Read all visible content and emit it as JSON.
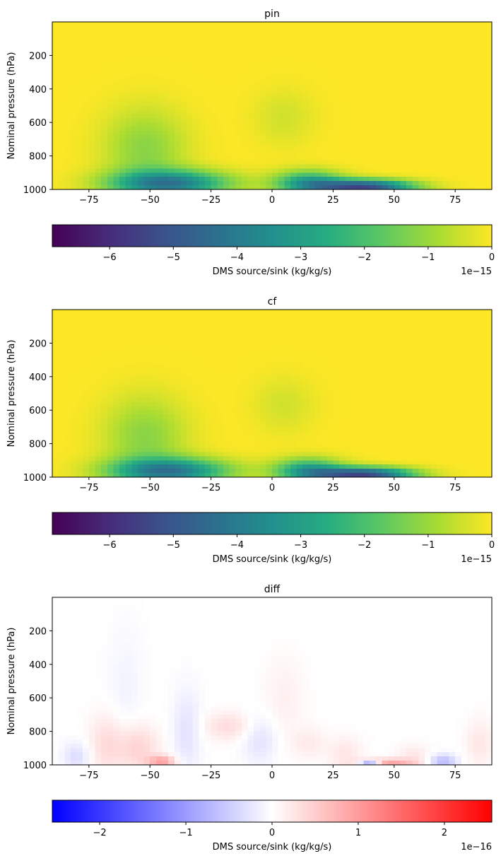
{
  "chart_data": [
    {
      "type": "heatmap",
      "title": "pin",
      "xlabel": "",
      "ylabel": "Nominal pressure (hPa)",
      "xlim": [
        -90,
        90
      ],
      "ylim": [
        1000,
        0
      ],
      "xticks": [
        -75,
        -50,
        -25,
        0,
        25,
        50,
        75
      ],
      "xtick_labels": [
        "−75",
        "−50",
        "−25",
        "0",
        "25",
        "50",
        "75"
      ],
      "yticks": [
        200,
        400,
        600,
        800,
        1000
      ],
      "ytick_labels": [
        "200",
        "400",
        "600",
        "800",
        "1000"
      ],
      "colormap": "viridis",
      "colorbar": {
        "label": "DMS source/sink (kg/kg/s)",
        "range": [
          -6.9,
          0
        ],
        "ticks": [
          -6,
          -5,
          -4,
          -3,
          -2,
          -1,
          0
        ],
        "tick_labels": [
          "−6",
          "−5",
          "−4",
          "−3",
          "−2",
          "−1",
          "0"
        ],
        "offset_text": "1e−15"
      },
      "features": [
        {
          "lat": -52,
          "p": 760,
          "lat_sd": 12,
          "p_sd": 170,
          "value": -1.2
        },
        {
          "lat": -42,
          "p": 965,
          "lat_sd": 17,
          "p_sd": 55,
          "value": -4.0
        },
        {
          "lat": 38,
          "p": 985,
          "lat_sd": 14,
          "p_sd": 30,
          "value": -5.3
        },
        {
          "lat": 15,
          "p": 960,
          "lat_sd": 10,
          "p_sd": 50,
          "value": -3.0
        },
        {
          "lat": 5,
          "p": 570,
          "lat_sd": 9,
          "p_sd": 120,
          "value": -0.45
        }
      ]
    },
    {
      "type": "heatmap",
      "title": "cf",
      "xlabel": "",
      "ylabel": "Nominal pressure (hPa)",
      "xlim": [
        -90,
        90
      ],
      "ylim": [
        1000,
        0
      ],
      "xticks": [
        -75,
        -50,
        -25,
        0,
        25,
        50,
        75
      ],
      "xtick_labels": [
        "−75",
        "−50",
        "−25",
        "0",
        "25",
        "50",
        "75"
      ],
      "yticks": [
        200,
        400,
        600,
        800,
        1000
      ],
      "ytick_labels": [
        "200",
        "400",
        "600",
        "800",
        "1000"
      ],
      "colormap": "viridis",
      "colorbar": {
        "label": "DMS source/sink (kg/kg/s)",
        "range": [
          -6.9,
          0
        ],
        "ticks": [
          -6,
          -5,
          -4,
          -3,
          -2,
          -1,
          0
        ],
        "tick_labels": [
          "−6",
          "−5",
          "−4",
          "−3",
          "−2",
          "−1",
          "0"
        ],
        "offset_text": "1e−15"
      },
      "features": [
        {
          "lat": -52,
          "p": 760,
          "lat_sd": 12,
          "p_sd": 170,
          "value": -1.2
        },
        {
          "lat": -42,
          "p": 965,
          "lat_sd": 17,
          "p_sd": 55,
          "value": -4.0
        },
        {
          "lat": 38,
          "p": 985,
          "lat_sd": 14,
          "p_sd": 30,
          "value": -5.3
        },
        {
          "lat": 15,
          "p": 960,
          "lat_sd": 10,
          "p_sd": 50,
          "value": -3.0
        },
        {
          "lat": 5,
          "p": 570,
          "lat_sd": 9,
          "p_sd": 120,
          "value": -0.45
        }
      ]
    },
    {
      "type": "heatmap",
      "title": "diff",
      "xlabel": "",
      "ylabel": "Nominal pressure (hPa)",
      "xlim": [
        -90,
        90
      ],
      "ylim": [
        1000,
        0
      ],
      "xticks": [
        -75,
        -50,
        -25,
        0,
        25,
        50,
        75
      ],
      "xtick_labels": [
        "−75",
        "−50",
        "−25",
        "0",
        "25",
        "50",
        "75"
      ],
      "yticks": [
        200,
        400,
        600,
        800,
        1000
      ],
      "ytick_labels": [
        "200",
        "400",
        "600",
        "800",
        "1000"
      ],
      "colormap": "bwr",
      "colorbar": {
        "label": "DMS source/sink (kg/kg/s)",
        "range": [
          -2.55,
          2.55
        ],
        "ticks": [
          -2,
          -1,
          0,
          1,
          2
        ],
        "tick_labels": [
          "−2",
          "−1",
          "0",
          "1",
          "2"
        ],
        "offset_text": "1e−16"
      },
      "features": [
        {
          "lat": -80,
          "p": 950,
          "lat_sd": 4,
          "p_sd": 60,
          "value": -0.35
        },
        {
          "lat": -68,
          "p": 880,
          "lat_sd": 5,
          "p_sd": 130,
          "value": 0.35
        },
        {
          "lat": -55,
          "p": 900,
          "lat_sd": 6,
          "p_sd": 100,
          "value": 0.45
        },
        {
          "lat": -45,
          "p": 980,
          "lat_sd": 4,
          "p_sd": 25,
          "value": 0.9
        },
        {
          "lat": -60,
          "p": 550,
          "lat_sd": 5,
          "p_sd": 250,
          "value": -0.12
        },
        {
          "lat": -35,
          "p": 800,
          "lat_sd": 4,
          "p_sd": 170,
          "value": -0.3
        },
        {
          "lat": -18,
          "p": 770,
          "lat_sd": 7,
          "p_sd": 60,
          "value": 0.35
        },
        {
          "lat": -5,
          "p": 850,
          "lat_sd": 5,
          "p_sd": 100,
          "value": -0.3
        },
        {
          "lat": 5,
          "p": 600,
          "lat_sd": 6,
          "p_sd": 180,
          "value": 0.15
        },
        {
          "lat": 15,
          "p": 870,
          "lat_sd": 5,
          "p_sd": 70,
          "value": 0.2
        },
        {
          "lat": 30,
          "p": 930,
          "lat_sd": 5,
          "p_sd": 70,
          "value": 0.25
        },
        {
          "lat": 40,
          "p": 995,
          "lat_sd": 3,
          "p_sd": 12,
          "value": -1.6
        },
        {
          "lat": 47,
          "p": 985,
          "lat_sd": 8,
          "p_sd": 15,
          "value": 0.9
        },
        {
          "lat": 58,
          "p": 950,
          "lat_sd": 5,
          "p_sd": 50,
          "value": 0.25
        },
        {
          "lat": 70,
          "p": 980,
          "lat_sd": 4,
          "p_sd": 30,
          "value": -0.7
        },
        {
          "lat": 85,
          "p": 870,
          "lat_sd": 4,
          "p_sd": 100,
          "value": 0.25
        }
      ]
    }
  ]
}
